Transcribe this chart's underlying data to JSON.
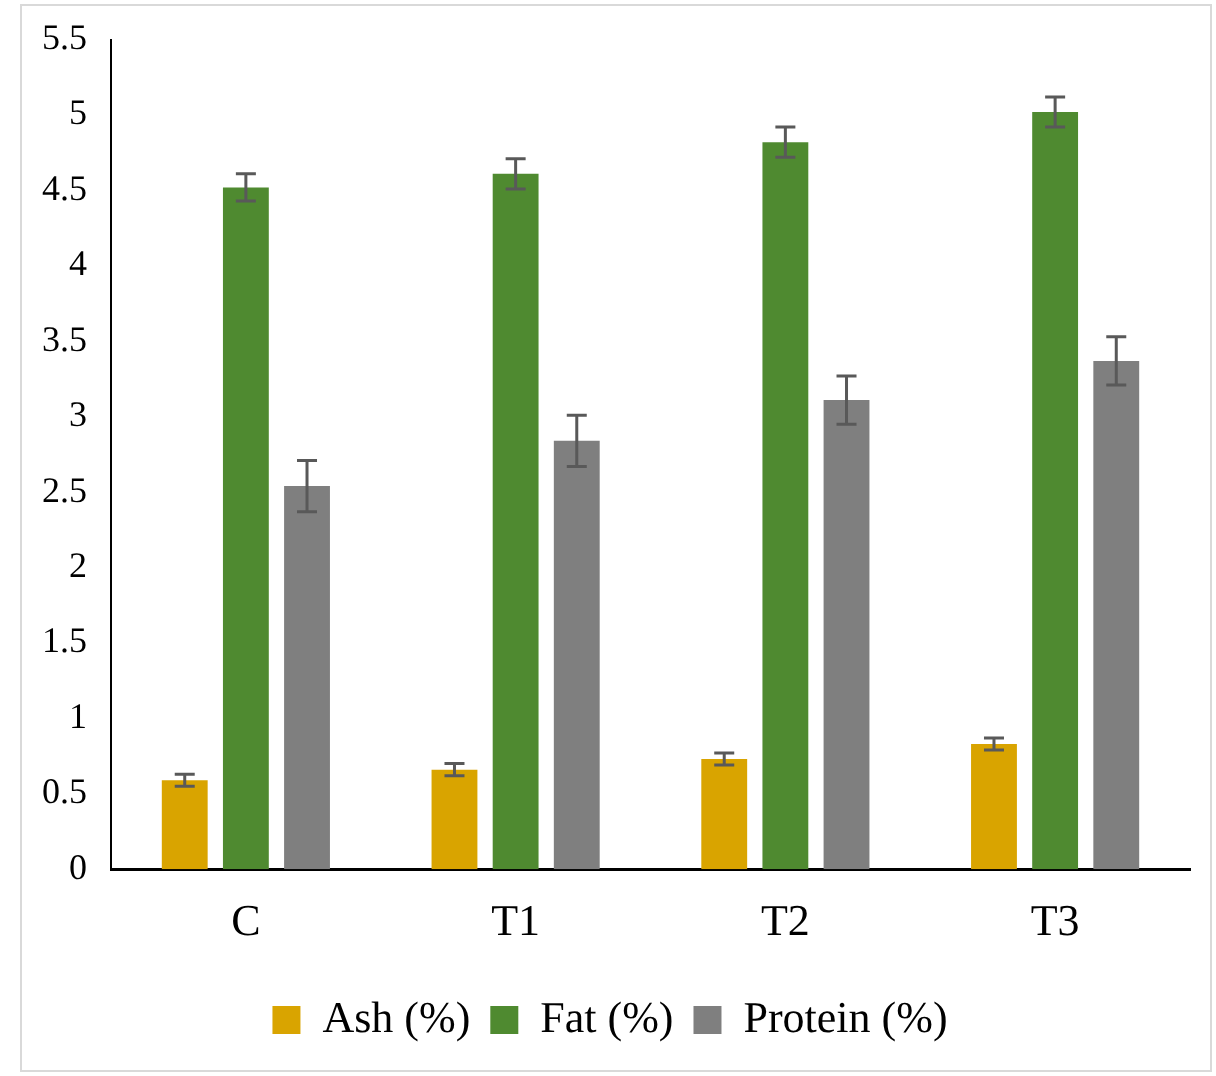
{
  "chart_data": {
    "type": "bar",
    "categories": [
      "C",
      "T1",
      "T2",
      "T3"
    ],
    "series": [
      {
        "name": "Ash (%)",
        "color": "#d9a400",
        "values": [
          0.59,
          0.66,
          0.73,
          0.83
        ],
        "errors": [
          0.04,
          0.04,
          0.04,
          0.04
        ]
      },
      {
        "name": "Fat (%)",
        "color": "#4f8a30",
        "values": [
          4.52,
          4.61,
          4.82,
          5.02
        ],
        "errors": [
          0.09,
          0.1,
          0.1,
          0.1
        ]
      },
      {
        "name": "Protein (%)",
        "color": "#7f7f7f",
        "values": [
          2.54,
          2.84,
          3.11,
          3.37
        ],
        "errors": [
          0.17,
          0.17,
          0.16,
          0.16
        ]
      }
    ],
    "ylim": [
      0,
      5.5
    ],
    "yticks": [
      0,
      0.5,
      1,
      1.5,
      2,
      2.5,
      3,
      3.5,
      4,
      4.5,
      5,
      5.5
    ],
    "grid": false,
    "legend": "bottom"
  }
}
